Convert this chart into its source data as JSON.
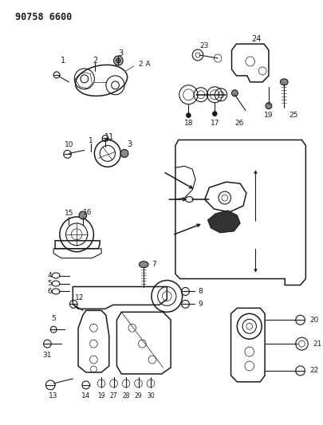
{
  "title": "90758 6600",
  "bg_color": "#ffffff",
  "line_color": "#1a1a1a",
  "fig_width": 4.05,
  "fig_height": 5.33,
  "dpi": 100
}
